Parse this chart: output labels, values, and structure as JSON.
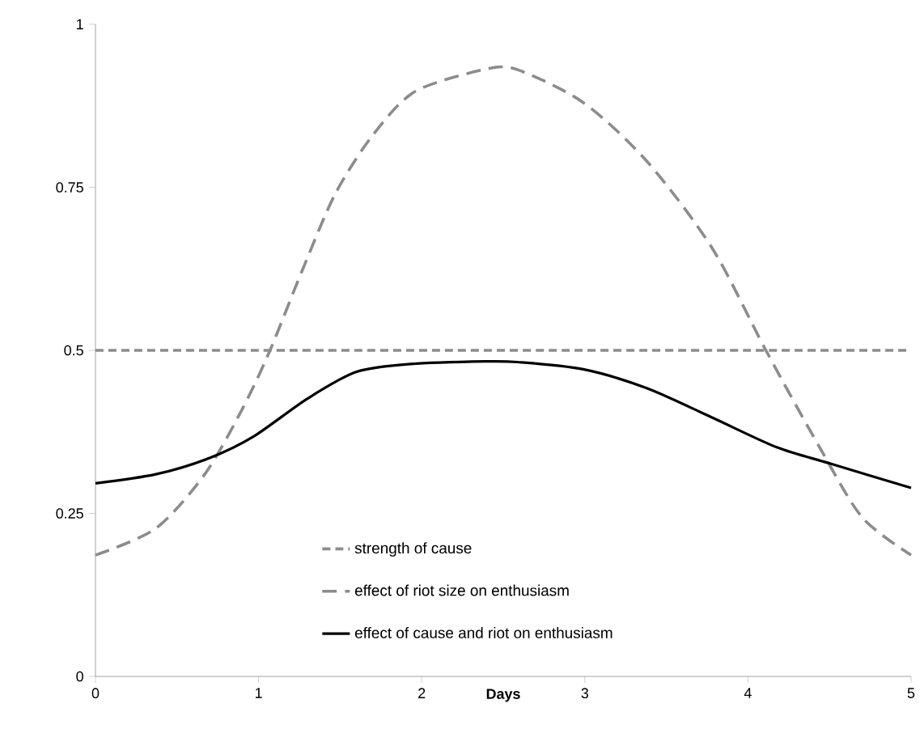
{
  "chart_data": {
    "type": "line",
    "xlabel": "Days",
    "xlim": [
      0,
      5
    ],
    "ylim": [
      0,
      1
    ],
    "xticks": [
      0,
      1,
      2,
      3,
      4,
      5
    ],
    "yticks": [
      0,
      0.25,
      0.5,
      0.75,
      1
    ],
    "grid": false,
    "legend": "bottom",
    "marker": "none",
    "series": [
      {
        "name": "strength  of cause",
        "color": "#8c8c8c",
        "line_style": "dashed",
        "x": [
          0,
          5
        ],
        "values": [
          0.5,
          0.5
        ]
      },
      {
        "name": "effect of riot size on enthusiasm",
        "color": "#8c8c8c",
        "line_style": "dashed",
        "x": [
          0,
          0.37,
          0.67,
          0.9,
          1.07,
          1.27,
          1.47,
          1.7,
          1.96,
          2.39,
          2.59,
          2.99,
          3.38,
          3.78,
          4.11,
          4.44,
          4.7,
          5
        ],
        "values": [
          0.186,
          0.227,
          0.31,
          0.41,
          0.5,
          0.624,
          0.74,
          0.83,
          0.897,
          0.931,
          0.93,
          0.88,
          0.79,
          0.657,
          0.5,
          0.351,
          0.244,
          0.186
        ]
      },
      {
        "name": "effect  of cause and riot on enthusiasm",
        "color": "#000000",
        "line_style": "solid",
        "x": [
          0,
          0.37,
          0.7,
          0.97,
          1.3,
          1.6,
          1.93,
          2.39,
          2.59,
          2.99,
          3.38,
          3.78,
          4.18,
          4.51,
          5
        ],
        "values": [
          0.296,
          0.31,
          0.335,
          0.368,
          0.426,
          0.467,
          0.479,
          0.483,
          0.482,
          0.471,
          0.442,
          0.397,
          0.351,
          0.326,
          0.289
        ]
      }
    ]
  }
}
